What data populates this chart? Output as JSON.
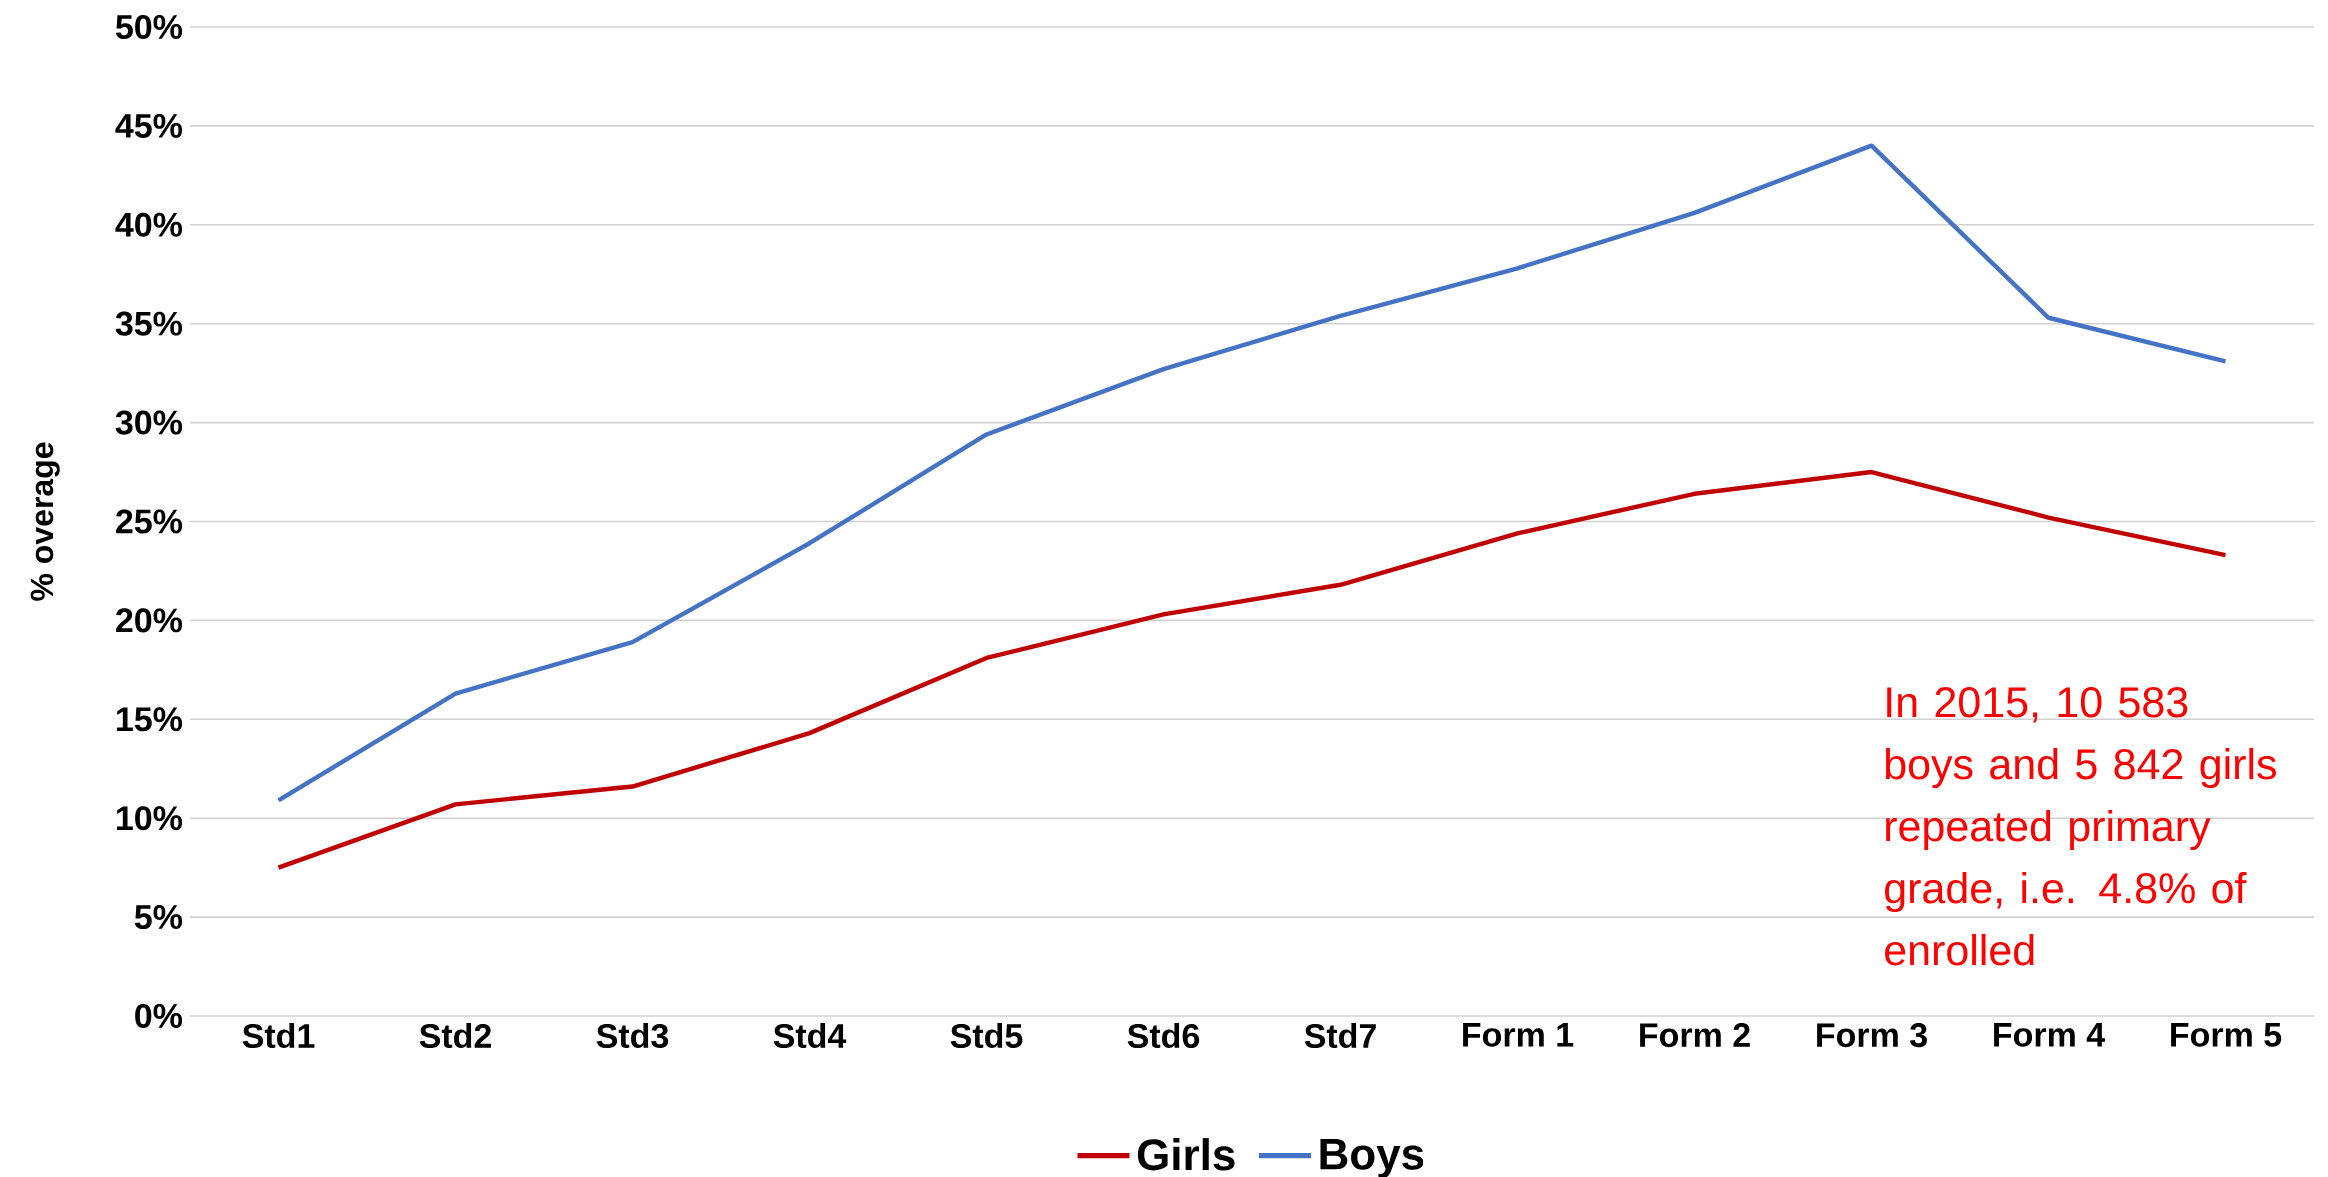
{
  "chart_data": {
    "type": "line",
    "ylabel": "% overage",
    "categories": [
      "Std1",
      "Std2",
      "Std3",
      "Std4",
      "Std5",
      "Std6",
      "Std7",
      "Form 1",
      "Form 2",
      "Form 3",
      "Form 4",
      "Form 5"
    ],
    "series": [
      {
        "name": "Girls",
        "color": "#c00000",
        "values": [
          7.5,
          10.7,
          11.6,
          14.3,
          18.1,
          20.3,
          21.8,
          24.4,
          26.4,
          27.5,
          25.2,
          23.3
        ]
      },
      {
        "name": "Boys",
        "color": "#4472c4",
        "values": [
          10.9,
          16.3,
          18.9,
          23.9,
          29.4,
          32.7,
          35.4,
          37.8,
          40.6,
          44.0,
          35.3,
          33.1
        ]
      }
    ],
    "ylim": [
      0,
      50
    ],
    "yticks": [
      {
        "value": 0,
        "label": "0%"
      },
      {
        "value": 5,
        "label": "5%"
      },
      {
        "value": 10,
        "label": "10%"
      },
      {
        "value": 15,
        "label": "15%"
      },
      {
        "value": 20,
        "label": "20%"
      },
      {
        "value": 25,
        "label": "25%"
      },
      {
        "value": 30,
        "label": "30%"
      },
      {
        "value": 35,
        "label": "35%"
      },
      {
        "value": 40,
        "label": "40%"
      },
      {
        "value": 45,
        "label": "45%"
      },
      {
        "value": 50,
        "label": "50%"
      }
    ],
    "grid": "y",
    "legend": "bottom",
    "marker": "none",
    "line_style": "solid",
    "annotations": [
      "In 2015, 10 583 boys and 5 842 girls repeated primary grade, i.e. 4.8% of enrolled"
    ]
  }
}
